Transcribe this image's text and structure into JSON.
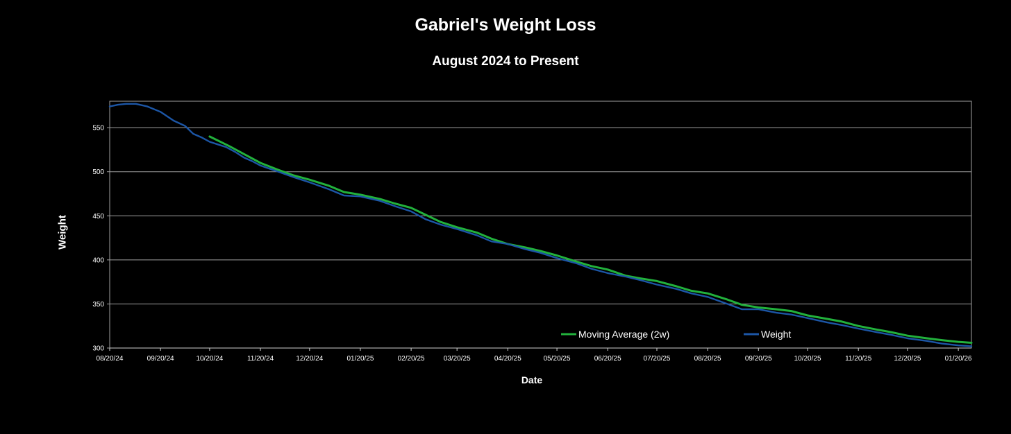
{
  "chart_data": {
    "type": "line",
    "title": "Gabriel's Weight Loss",
    "subtitle": "August 2024 to Present",
    "xlabel": "Date",
    "ylabel": "Weight",
    "ylim": [
      300,
      580
    ],
    "yticks": [
      300,
      350,
      400,
      450,
      500,
      550
    ],
    "x_start": "08/20/24",
    "x_end": "01/28/26",
    "xticks": [
      "08/20/24",
      "09/20/24",
      "10/20/24",
      "11/20/24",
      "12/20/24",
      "01/20/25",
      "02/20/25",
      "03/20/25",
      "04/20/25",
      "05/20/25",
      "06/20/25",
      "07/20/25",
      "08/20/25",
      "09/20/25",
      "10/20/25",
      "11/20/25",
      "12/20/25",
      "01/20/26"
    ],
    "grid": true,
    "legend": "bottom-right",
    "series": [
      {
        "name": "Moving Average (2w)",
        "color": "#22b13c",
        "points": [
          [
            "10/20/24",
            540
          ],
          [
            "11/01/24",
            529
          ],
          [
            "11/10/24",
            520
          ],
          [
            "11/20/24",
            510
          ],
          [
            "12/01/24",
            502
          ],
          [
            "12/10/24",
            496
          ],
          [
            "12/20/24",
            491
          ],
          [
            "01/01/25",
            484
          ],
          [
            "01/10/25",
            477
          ],
          [
            "01/20/25",
            474
          ],
          [
            "02/01/25",
            469
          ],
          [
            "02/10/25",
            464
          ],
          [
            "02/20/25",
            459
          ],
          [
            "03/01/25",
            451
          ],
          [
            "03/10/25",
            443
          ],
          [
            "03/20/25",
            437
          ],
          [
            "04/01/25",
            431
          ],
          [
            "04/10/25",
            424
          ],
          [
            "04/20/25",
            418
          ],
          [
            "05/01/25",
            414
          ],
          [
            "05/10/25",
            410
          ],
          [
            "05/20/25",
            405
          ],
          [
            "06/01/25",
            398
          ],
          [
            "06/10/25",
            393
          ],
          [
            "06/20/25",
            389
          ],
          [
            "07/01/25",
            382
          ],
          [
            "07/10/25",
            379
          ],
          [
            "07/20/25",
            376
          ],
          [
            "08/01/25",
            370
          ],
          [
            "08/10/25",
            365
          ],
          [
            "08/20/25",
            362
          ],
          [
            "09/01/25",
            355
          ],
          [
            "09/10/25",
            349
          ],
          [
            "09/20/25",
            346
          ],
          [
            "10/01/25",
            344
          ],
          [
            "10/10/25",
            342
          ],
          [
            "10/20/25",
            337
          ],
          [
            "11/01/25",
            333
          ],
          [
            "11/10/25",
            330
          ],
          [
            "11/20/25",
            325
          ],
          [
            "12/01/25",
            321
          ],
          [
            "12/10/25",
            318
          ],
          [
            "12/20/25",
            314
          ],
          [
            "01/01/26",
            311
          ],
          [
            "01/10/26",
            309
          ],
          [
            "01/20/26",
            307
          ],
          [
            "01/28/26",
            306
          ]
        ]
      },
      {
        "name": "Weight",
        "color": "#1c56a6",
        "points": [
          [
            "08/20/24",
            574
          ],
          [
            "08/25/24",
            576
          ],
          [
            "08/30/24",
            577
          ],
          [
            "09/05/24",
            577
          ],
          [
            "09/12/24",
            574
          ],
          [
            "09/20/24",
            568
          ],
          [
            "09/28/24",
            558
          ],
          [
            "10/05/24",
            552
          ],
          [
            "10/10/24",
            543
          ],
          [
            "10/15/24",
            539
          ],
          [
            "10/20/24",
            534
          ],
          [
            "10/25/24",
            531
          ],
          [
            "10/30/24",
            528
          ],
          [
            "11/05/24",
            522
          ],
          [
            "11/10/24",
            516
          ],
          [
            "11/15/24",
            512
          ],
          [
            "11/20/24",
            507
          ],
          [
            "12/01/24",
            500
          ],
          [
            "12/10/24",
            494
          ],
          [
            "12/20/24",
            488
          ],
          [
            "01/01/25",
            480
          ],
          [
            "01/10/25",
            473
          ],
          [
            "01/20/25",
            472
          ],
          [
            "02/01/25",
            467
          ],
          [
            "02/10/25",
            461
          ],
          [
            "02/20/25",
            455
          ],
          [
            "03/01/25",
            446
          ],
          [
            "03/10/25",
            440
          ],
          [
            "03/20/25",
            435
          ],
          [
            "04/01/25",
            428
          ],
          [
            "04/10/25",
            421
          ],
          [
            "04/20/25",
            418
          ],
          [
            "05/01/25",
            412
          ],
          [
            "05/10/25",
            408
          ],
          [
            "05/20/25",
            402
          ],
          [
            "06/01/25",
            396
          ],
          [
            "06/10/25",
            390
          ],
          [
            "06/20/25",
            385
          ],
          [
            "07/01/25",
            381
          ],
          [
            "07/10/25",
            377
          ],
          [
            "07/20/25",
            372
          ],
          [
            "08/01/25",
            367
          ],
          [
            "08/10/25",
            362
          ],
          [
            "08/20/25",
            358
          ],
          [
            "09/01/25",
            350
          ],
          [
            "09/10/25",
            344
          ],
          [
            "09/20/25",
            344
          ],
          [
            "10/01/25",
            340
          ],
          [
            "10/10/25",
            338
          ],
          [
            "10/20/25",
            334
          ],
          [
            "11/01/25",
            329
          ],
          [
            "11/10/25",
            326
          ],
          [
            "11/20/25",
            322
          ],
          [
            "12/01/25",
            318
          ],
          [
            "12/10/25",
            315
          ],
          [
            "12/20/25",
            311
          ],
          [
            "01/01/26",
            308
          ],
          [
            "01/10/26",
            305
          ],
          [
            "01/20/26",
            303
          ],
          [
            "01/28/26",
            302
          ]
        ]
      }
    ]
  }
}
